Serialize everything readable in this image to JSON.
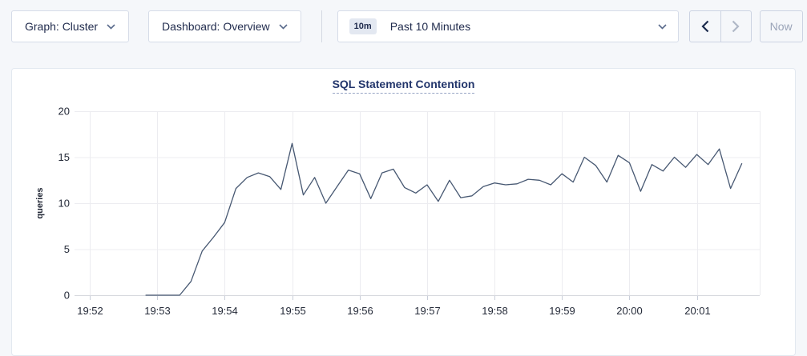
{
  "toolbar": {
    "graph_dropdown_label": "Graph: Cluster",
    "dashboard_dropdown_label": "Dashboard: Overview",
    "time_window_badge": "10m",
    "time_window_label": "Past 10 Minutes",
    "now_button_label": "Now"
  },
  "colors": {
    "page_background": "#f5f7fa",
    "panel_background": "#ffffff",
    "title_navy": "#22356b",
    "text_navy": "#1f2a4c",
    "disabled_gray": "#9aa4b8",
    "gridline": "#ececf0",
    "axis_line": "#d7d9de",
    "tick": "#c9ced9",
    "series_line": "#475872"
  },
  "chart_data": {
    "type": "line",
    "title": "SQL Statement Contention",
    "xlabel": "",
    "ylabel": "queries",
    "ylim": [
      0,
      20
    ],
    "yticks": [
      0,
      5,
      10,
      15,
      20
    ],
    "grid": true,
    "legend_position": "none",
    "x_start": "19:52:00",
    "xticks": [
      "19:52",
      "19:53",
      "19:54",
      "19:55",
      "19:56",
      "19:57",
      "19:58",
      "19:59",
      "20:00",
      "20:01"
    ],
    "series": [
      {
        "name": "SQL Statement Contention",
        "color": "#475872",
        "points": [
          [
            "19:52:50",
            0
          ],
          [
            "19:53:00",
            0
          ],
          [
            "19:53:10",
            0
          ],
          [
            "19:53:20",
            0
          ],
          [
            "19:53:30",
            1.5
          ],
          [
            "19:53:40",
            4.8
          ],
          [
            "19:53:50",
            6.3
          ],
          [
            "19:54:00",
            7.9
          ],
          [
            "19:54:10",
            11.6
          ],
          [
            "19:54:20",
            12.8
          ],
          [
            "19:54:30",
            13.3
          ],
          [
            "19:54:40",
            12.9
          ],
          [
            "19:54:50",
            11.5
          ],
          [
            "19:55:00",
            16.5
          ],
          [
            "19:55:10",
            10.9
          ],
          [
            "19:55:20",
            12.8
          ],
          [
            "19:55:30",
            10.0
          ],
          [
            "19:55:40",
            11.8
          ],
          [
            "19:55:50",
            13.6
          ],
          [
            "19:56:00",
            13.2
          ],
          [
            "19:56:10",
            10.5
          ],
          [
            "19:56:20",
            13.3
          ],
          [
            "19:56:30",
            13.7
          ],
          [
            "19:56:40",
            11.7
          ],
          [
            "19:56:50",
            11.1
          ],
          [
            "19:57:00",
            12.0
          ],
          [
            "19:57:10",
            10.2
          ],
          [
            "19:57:20",
            12.5
          ],
          [
            "19:57:30",
            10.6
          ],
          [
            "19:57:40",
            10.8
          ],
          [
            "19:57:50",
            11.8
          ],
          [
            "19:58:00",
            12.2
          ],
          [
            "19:58:10",
            12.0
          ],
          [
            "19:58:20",
            12.1
          ],
          [
            "19:58:30",
            12.6
          ],
          [
            "19:58:40",
            12.5
          ],
          [
            "19:58:50",
            12.0
          ],
          [
            "19:59:00",
            13.2
          ],
          [
            "19:59:10",
            12.3
          ],
          [
            "19:59:20",
            15.0
          ],
          [
            "19:59:30",
            14.1
          ],
          [
            "19:59:40",
            12.3
          ],
          [
            "19:59:50",
            15.2
          ],
          [
            "20:00:00",
            14.4
          ],
          [
            "20:00:10",
            11.3
          ],
          [
            "20:00:20",
            14.2
          ],
          [
            "20:00:30",
            13.5
          ],
          [
            "20:00:40",
            15.0
          ],
          [
            "20:00:50",
            13.9
          ],
          [
            "20:01:00",
            15.3
          ],
          [
            "20:01:10",
            14.2
          ],
          [
            "20:01:20",
            15.9
          ],
          [
            "20:01:30",
            11.6
          ],
          [
            "20:01:40",
            14.3
          ]
        ]
      }
    ]
  }
}
